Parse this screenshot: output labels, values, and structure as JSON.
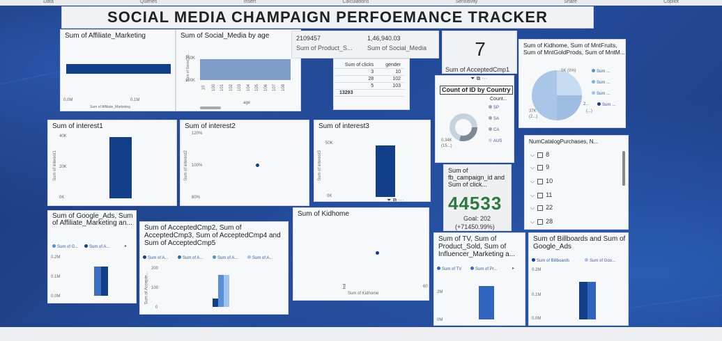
{
  "ribbon": [
    "Data",
    "Queries",
    "Insert",
    "Calculations",
    "Sensitivity",
    "Share",
    "Copilot"
  ],
  "title": "SOCIAL MEDIA CHAMPAIGN PERFOEMANCE TRACKER",
  "affiliate": {
    "title": "Sum of Affiliate_Marketing",
    "x_ticks": [
      "0.0M",
      "0.1M"
    ],
    "xlabel": "Sum of Affiliate_Marketing"
  },
  "social_age": {
    "title": "Sum of Social_Media by age",
    "y_ticks": [
      "150K",
      "100K"
    ],
    "ylabel": "Sum of Social_M...",
    "x_ticks": [
      "10",
      "100",
      "101",
      "102",
      "103",
      "104",
      "105",
      "106",
      "107",
      "108"
    ],
    "xlabel": "age"
  },
  "cards": {
    "product_value": "2109457",
    "product_label": "Sum of Product_S...",
    "social_value": "1,46,940.03",
    "social_label": "Sum of Social_Media",
    "accepted_value": "7",
    "accepted_label": "Sum of AcceptedCmp1"
  },
  "clicks_table": {
    "headers": [
      "Sum of clicks",
      "gender"
    ],
    "rows": [
      [
        "3",
        "10"
      ],
      [
        "28",
        "102"
      ],
      [
        "5",
        "103"
      ]
    ],
    "total": "13293"
  },
  "kidhome": {
    "title": "Sum of Kidhome, Sum of MntFruits, Sum of MntGoldProds, Sum of MntM...",
    "legend": [
      "Sum ...",
      "Sum ...",
      "Sum ...",
      "Sum ...",
      "Sum ..."
    ],
    "labels": [
      "0K (0%)",
      "37K",
      "(2...)",
      "2...",
      "(...)"
    ]
  },
  "country": {
    "title": "Count of ID by Country",
    "legend_title": "Count...",
    "items": [
      "SP",
      "SA",
      "CA",
      "AUS"
    ],
    "center_label": "0.34K",
    "center_sub": "(15...)"
  },
  "interest1": {
    "title": "Sum of interest1",
    "y_ticks": [
      "40K",
      "20K",
      "0K"
    ],
    "ylabel": "Sum of interest1"
  },
  "interest2": {
    "title": "Sum of interest2",
    "y_ticks": [
      "120%",
      "100%",
      "80%"
    ],
    "ylabel": "Sum of interest2"
  },
  "interest3": {
    "title": "Sum of interest3",
    "y_ticks": [
      "50K",
      "0K"
    ],
    "ylabel": "Sum of interest3"
  },
  "fb_card": {
    "title": "Sum of fb_campaign_id and Sum of click...",
    "value": "44533",
    "goal": "Goal: 202",
    "pct": "(+71450.99%)"
  },
  "slicer": {
    "title": "NumCatalogPurchases, N...",
    "items": [
      "8",
      "9",
      "10",
      "11",
      "22",
      "28"
    ]
  },
  "google_ads": {
    "title": "Sum of Google_Ads, Sum of Affiliate_Marketing an...",
    "legend": [
      "Sum of G...",
      "Sum of A..."
    ],
    "y_ticks": [
      "0.2M",
      "0.1M",
      "0.0M"
    ]
  },
  "accepted_multi": {
    "title": "Sum of AcceptedCmp2, Sum of AcceptedCmp3, Sum of AcceptedCmp4 and Sum of AcceptedCmp5",
    "legend": [
      "Sum of A...",
      "Sum of A...",
      "Sum of A...",
      "Sum of A..."
    ],
    "y_ticks": [
      "200",
      "100",
      "0"
    ],
    "ylabel": "Sum of Accepte..."
  },
  "kidhome_scatter": {
    "title": "Sum of Kidhome",
    "x_ticks": [
      "0",
      "60"
    ],
    "xlabel": "Sum of Kidhome"
  },
  "tv": {
    "title": "Sum of TV, Sum of Product_Sold, Sum of Influencer_Marketing a...",
    "legend": [
      "Sum of TV",
      "Sum of Pr..."
    ],
    "y_ticks": [
      "2M",
      "0M"
    ]
  },
  "billboards": {
    "title": "Sum of Billboards and Sum of Google_Ads",
    "legend": [
      "Sum of Billboards",
      "Sum of Goo..."
    ],
    "y_ticks": [
      "0.2M",
      "0.1M",
      "0.0M"
    ]
  }
}
